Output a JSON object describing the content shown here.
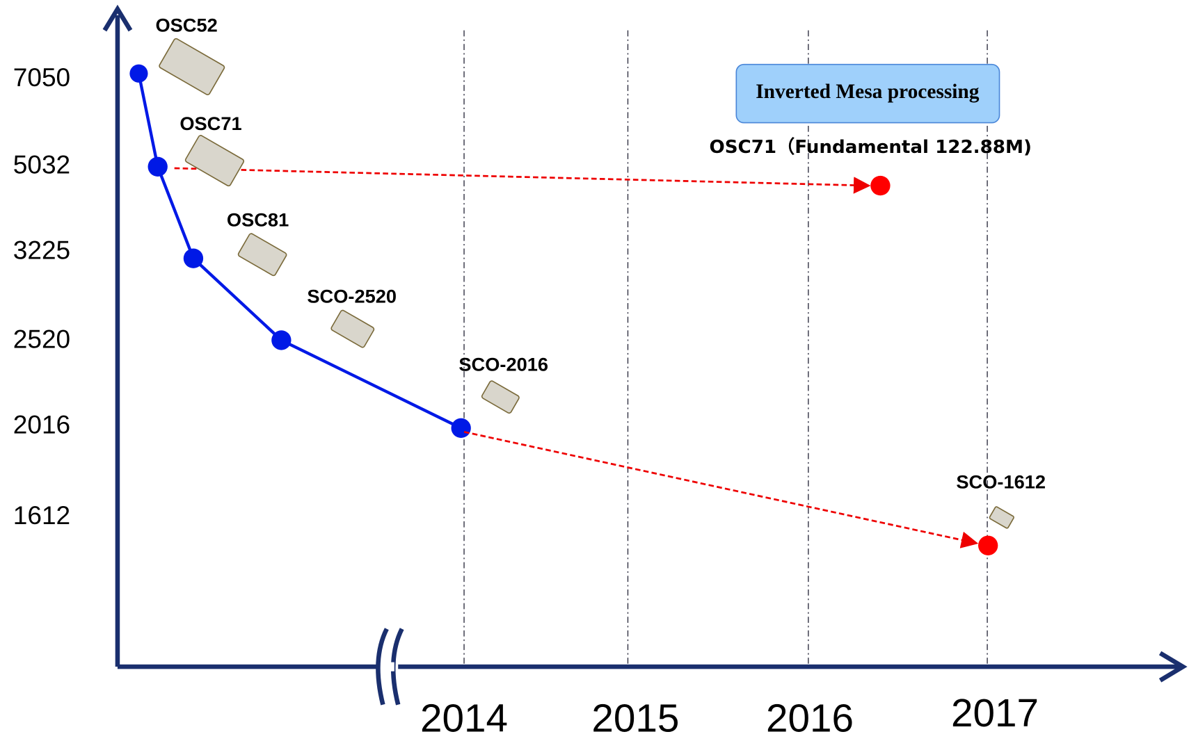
{
  "axis": {
    "y_labels": [
      "7050",
      "5032",
      "3225",
      "2520",
      "2016",
      "1612"
    ],
    "x_labels": [
      "2014",
      "2015",
      "2016",
      "2017"
    ]
  },
  "products": [
    {
      "label": "OSC52"
    },
    {
      "label": "OSC71"
    },
    {
      "label": "OSC81"
    },
    {
      "label": "SCO-2520"
    },
    {
      "label": "SCO-2016"
    },
    {
      "label": "SCO-1612"
    }
  ],
  "annotation": "Inverted Mesa processing",
  "target_label": "OSC71（Fundamental 122.88M)"
}
